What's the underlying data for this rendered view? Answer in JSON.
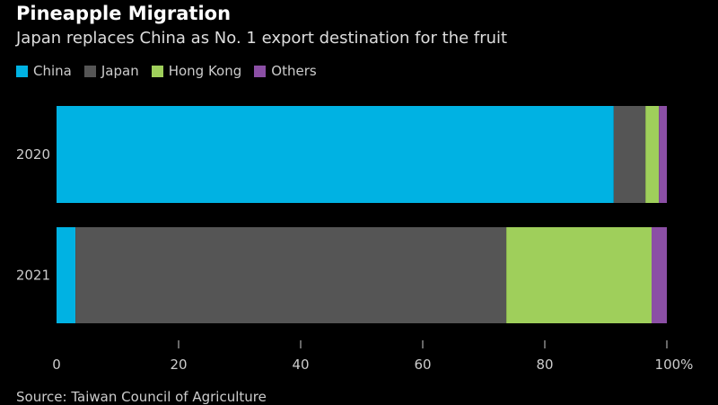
{
  "chart_data": {
    "type": "bar",
    "orientation": "horizontal",
    "stacked": true,
    "title": "Pineapple Migration",
    "subtitle": "Japan replaces China as No. 1 export destination for the fruit",
    "categories": [
      "2020",
      "2021"
    ],
    "series": [
      {
        "name": "China",
        "color": "#00b2e3",
        "values": [
          91.3,
          3.1
        ]
      },
      {
        "name": "Japan",
        "color": "#555555",
        "values": [
          5.2,
          70.6
        ]
      },
      {
        "name": "Hong Kong",
        "color": "#9fcf5b",
        "values": [
          2.2,
          23.8
        ]
      },
      {
        "name": "Others",
        "color": "#8b4fa5",
        "values": [
          1.3,
          2.5
        ]
      }
    ],
    "xlim": [
      0,
      100
    ],
    "xticks": [
      "0",
      "20",
      "40",
      "60",
      "80",
      "100%"
    ],
    "legend_position": "top-left",
    "source": "Source: Taiwan Council of Agriculture"
  }
}
